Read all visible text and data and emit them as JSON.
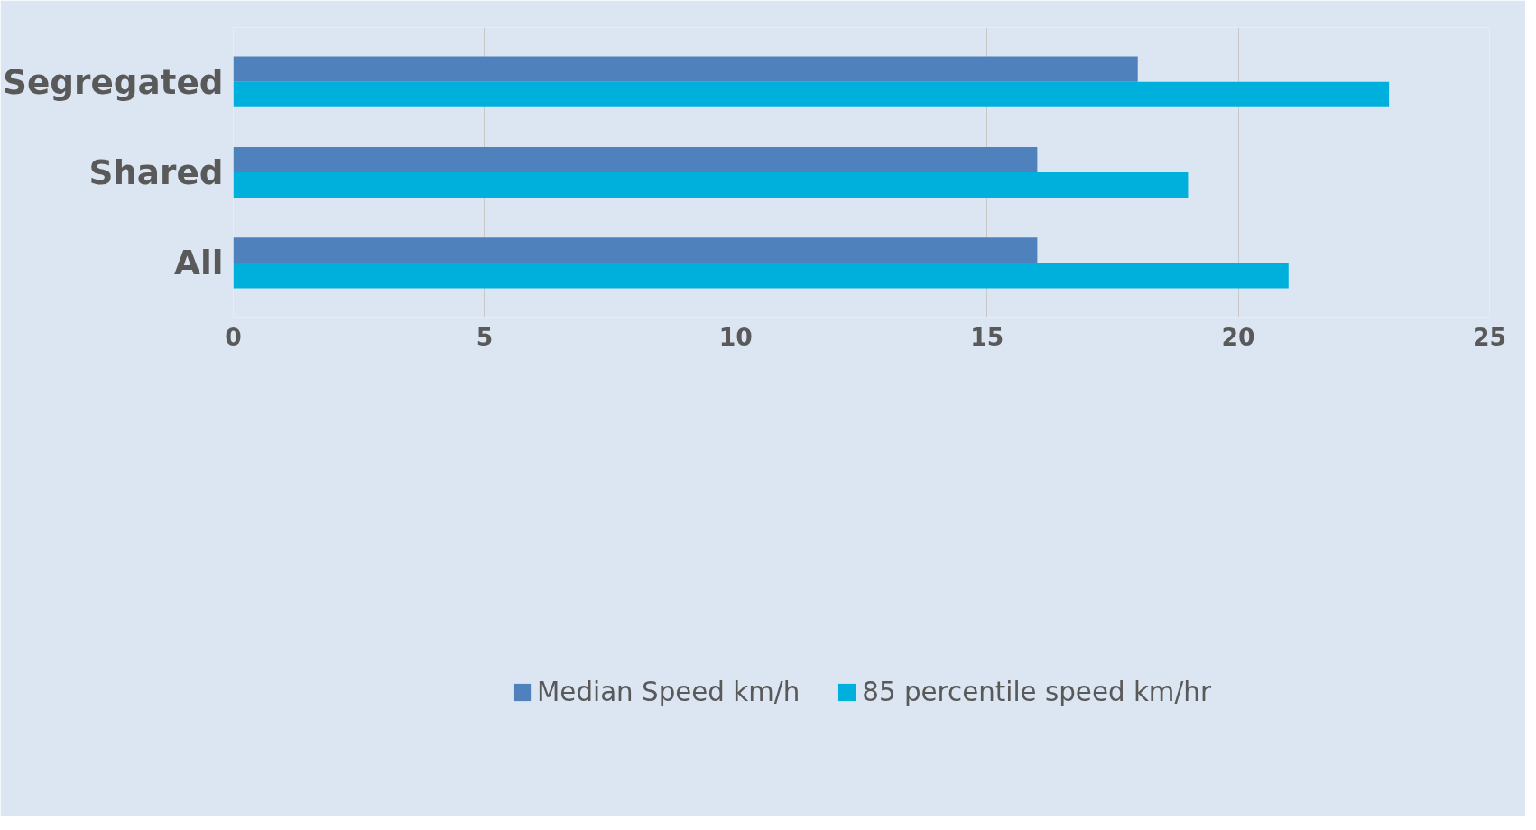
{
  "chart_data": {
    "type": "bar",
    "orientation": "horizontal",
    "categories": [
      "Segregated",
      "Shared",
      "All"
    ],
    "series": [
      {
        "name": "Median Speed km/h",
        "color": "#4f81bd",
        "values": [
          18,
          16,
          16
        ]
      },
      {
        "name": "85 percentile speed km/hr",
        "color": "#00b0dc",
        "values": [
          23,
          19,
          21
        ]
      }
    ],
    "xlim": [
      0,
      25
    ],
    "xticks": [
      0,
      5,
      10,
      15,
      20,
      25
    ],
    "grid": "x",
    "legend": "bottom"
  }
}
